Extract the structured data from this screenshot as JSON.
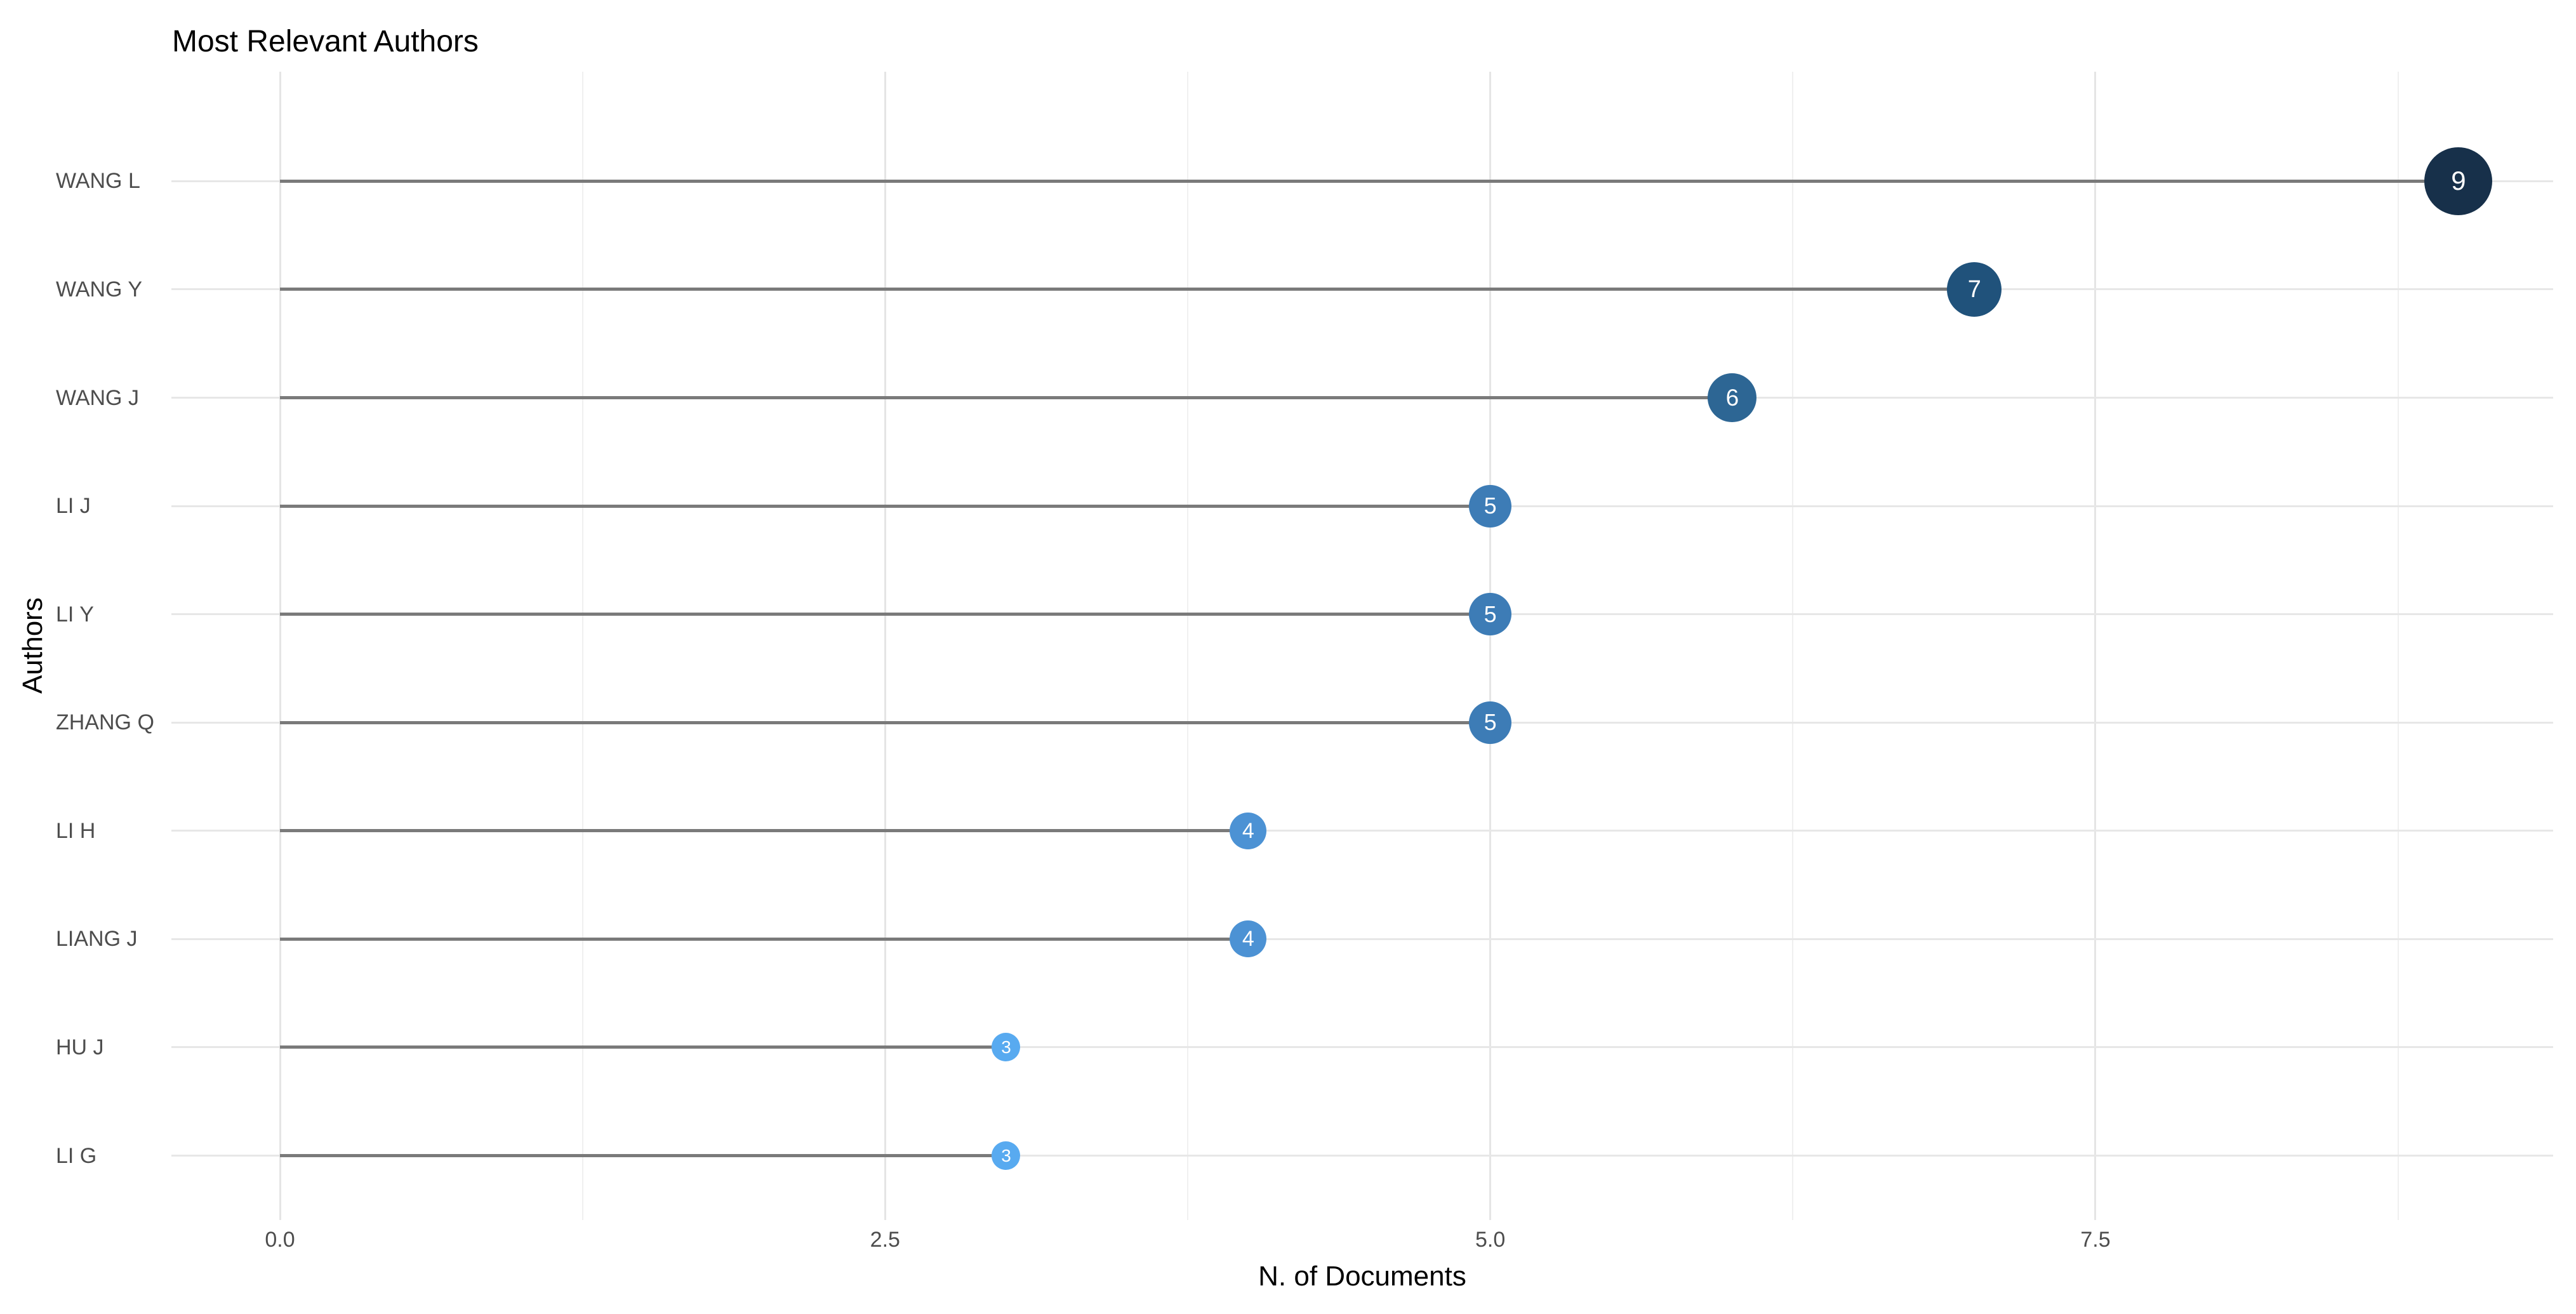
{
  "chart_data": {
    "type": "scatter",
    "variant": "lollipop",
    "title": "Most Relevant Authors",
    "xlabel": "N. of Documents",
    "ylabel": "Authors",
    "categories": [
      "WANG L",
      "WANG Y",
      "WANG J",
      "LI J",
      "LI Y",
      "ZHANG Q",
      "LI H",
      "LIANG J",
      "HU J",
      "LI G"
    ],
    "values": [
      9,
      7,
      6,
      5,
      5,
      5,
      4,
      4,
      3,
      3
    ],
    "points": [
      {
        "author": "WANG L",
        "value": 9,
        "label": "9",
        "color": "#17304a",
        "diameter": 107,
        "label_size": 42
      },
      {
        "author": "WANG Y",
        "value": 7,
        "label": "7",
        "color": "#20527b",
        "diameter": 86,
        "label_size": 38
      },
      {
        "author": "WANG J",
        "value": 6,
        "label": "6",
        "color": "#2d6694",
        "diameter": 77,
        "label_size": 37
      },
      {
        "author": "LI J",
        "value": 5,
        "label": "5",
        "color": "#3d7cb6",
        "diameter": 67,
        "label_size": 36
      },
      {
        "author": "LI Y",
        "value": 5,
        "label": "5",
        "color": "#3d7cb6",
        "diameter": 67,
        "label_size": 36
      },
      {
        "author": "ZHANG Q",
        "value": 5,
        "label": "5",
        "color": "#3d7cb6",
        "diameter": 67,
        "label_size": 36
      },
      {
        "author": "LI H",
        "value": 4,
        "label": "4",
        "color": "#4c92d4",
        "diameter": 58,
        "label_size": 34
      },
      {
        "author": "LIANG J",
        "value": 4,
        "label": "4",
        "color": "#4c92d4",
        "diameter": 58,
        "label_size": 34
      },
      {
        "author": "HU J",
        "value": 3,
        "label": "3",
        "color": "#58aaf0",
        "diameter": 45,
        "label_size": 28
      },
      {
        "author": "LI G",
        "value": 3,
        "label": "3",
        "color": "#58aaf0",
        "diameter": 45,
        "label_size": 28
      }
    ],
    "x_ticks": [
      {
        "value": 0,
        "label": "0.0"
      },
      {
        "value": 2.5,
        "label": "2.5"
      },
      {
        "value": 5,
        "label": "5.0"
      },
      {
        "value": 7.5,
        "label": "7.5"
      }
    ],
    "x_minor_ticks": [
      1.25,
      3.75,
      6.25,
      8.75
    ],
    "xlim": [
      -0.45,
      9.45
    ],
    "grid": "on",
    "legend": "none"
  },
  "colors": {
    "background": "#ffffff",
    "title_text": "#000000",
    "axis_title_text": "#000000",
    "tick_label_text": "#4d4d4d",
    "author_label_text": "#4d4d4d",
    "grid_major": "#e5e5e5",
    "grid_minor": "#f0f0f0",
    "row_gridline": "#e7e7e7",
    "stem": "#7a7a7a",
    "point_label_text": "#ffffff"
  }
}
